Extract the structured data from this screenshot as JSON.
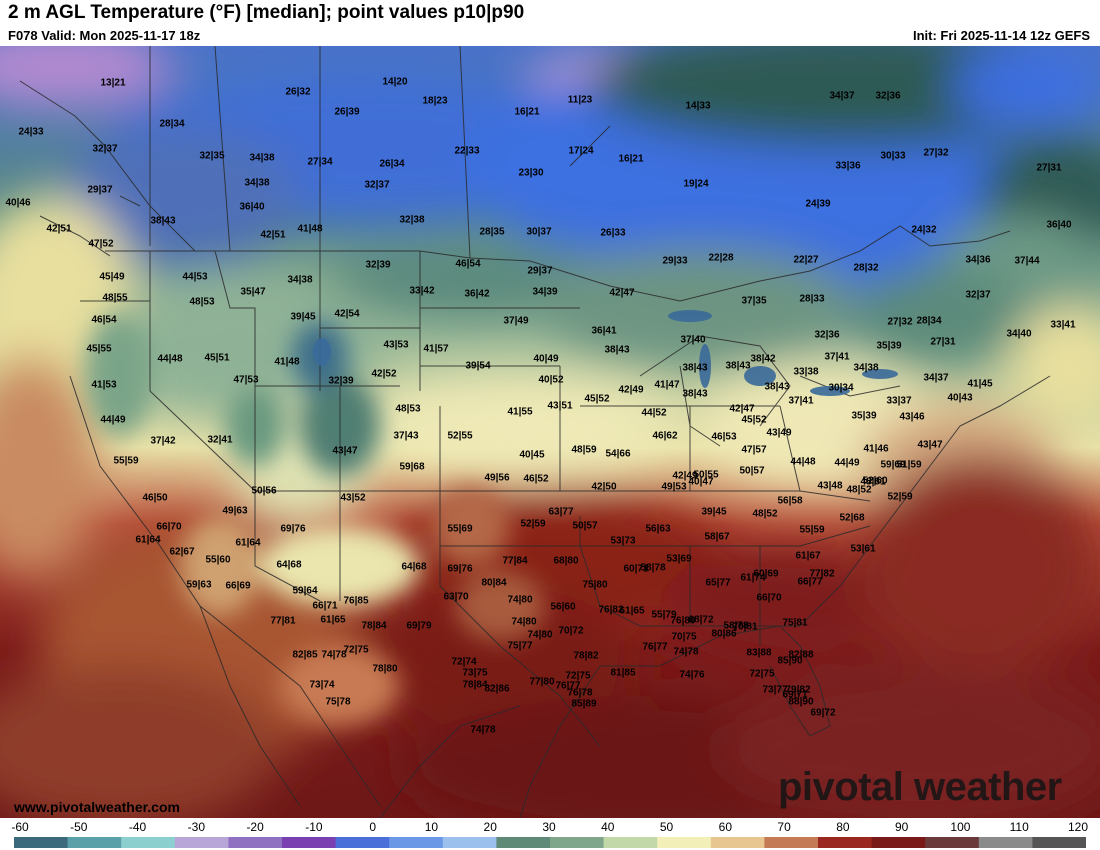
{
  "header": {
    "title": "2 m AGL Temperature (°F) [median]; point values p10|p90",
    "valid": "F078 Valid: Mon 2025-11-17 18z",
    "init": "Init: Fri 2025-11-14 12z GEFS"
  },
  "footer": {
    "site": "www.pivotalweather.com",
    "brand": "pivotal weather"
  },
  "colorbar": {
    "ticks": [
      "-60",
      "-50",
      "-40",
      "-30",
      "-20",
      "-10",
      "0",
      "10",
      "20",
      "30",
      "40",
      "50",
      "60",
      "70",
      "80",
      "90",
      "100",
      "110",
      "120"
    ],
    "colors": [
      "#3a6a7c",
      "#5aa0a8",
      "#8ccfcf",
      "#b8a6d8",
      "#9070c0",
      "#7a3fb0",
      "#4a6fd8",
      "#6a98e6",
      "#9cc0ee",
      "#5f8a78",
      "#7fa68a",
      "#c2d8a8",
      "#f2f0b8",
      "#e8c690",
      "#c47b55",
      "#9a2820",
      "#7a1a18",
      "#6a3a3a",
      "#8a8a8a",
      "#555555"
    ]
  },
  "point_values": [
    {
      "label": "13|21"
    },
    {
      "label": "26|32"
    },
    {
      "label": "14|20"
    },
    {
      "label": "18|23"
    },
    {
      "label": "16|21"
    },
    {
      "label": "11|23"
    },
    {
      "label": "14|33"
    },
    {
      "label": "34|37"
    },
    {
      "label": "32|36"
    },
    {
      "label": "24|33"
    },
    {
      "label": "28|34"
    },
    {
      "label": "26|39"
    },
    {
      "label": "32|37"
    },
    {
      "label": "32|35"
    },
    {
      "label": "34|38"
    },
    {
      "label": "27|34"
    },
    {
      "label": "26|34"
    },
    {
      "label": "22|33"
    },
    {
      "label": "23|30"
    },
    {
      "label": "17|24"
    },
    {
      "label": "16|21"
    },
    {
      "label": "30|33"
    },
    {
      "label": "27|32"
    },
    {
      "label": "33|36"
    },
    {
      "label": "27|31"
    },
    {
      "label": "29|37"
    },
    {
      "label": "34|38"
    },
    {
      "label": "32|37"
    },
    {
      "label": "19|24"
    },
    {
      "label": "40|46"
    },
    {
      "label": "36|40"
    },
    {
      "label": "38|43"
    },
    {
      "label": "32|38"
    },
    {
      "label": "24|39"
    },
    {
      "label": "42|51"
    },
    {
      "label": "41|48"
    },
    {
      "label": "42|51"
    },
    {
      "label": "28|35"
    },
    {
      "label": "30|37"
    },
    {
      "label": "26|33"
    },
    {
      "label": "24|32"
    },
    {
      "label": "36|40"
    },
    {
      "label": "47|52"
    },
    {
      "label": "29|33"
    },
    {
      "label": "22|28"
    },
    {
      "label": "22|27"
    },
    {
      "label": "28|32"
    },
    {
      "label": "34|36"
    },
    {
      "label": "37|44"
    },
    {
      "label": "32|39"
    },
    {
      "label": "46|54"
    },
    {
      "label": "45|49"
    },
    {
      "label": "44|53"
    },
    {
      "label": "34|38"
    },
    {
      "label": "29|37"
    },
    {
      "label": "42|47"
    },
    {
      "label": "35|47"
    },
    {
      "label": "33|42"
    },
    {
      "label": "36|42"
    },
    {
      "label": "34|39"
    },
    {
      "label": "32|37"
    },
    {
      "label": "48|55"
    },
    {
      "label": "48|53"
    },
    {
      "label": "37|35"
    },
    {
      "label": "28|33"
    },
    {
      "label": "39|45"
    },
    {
      "label": "42|54"
    },
    {
      "label": "37|49"
    },
    {
      "label": "46|54"
    },
    {
      "label": "27|32"
    },
    {
      "label": "28|34"
    },
    {
      "label": "33|41"
    },
    {
      "label": "36|41"
    },
    {
      "label": "34|40"
    },
    {
      "label": "37|40"
    },
    {
      "label": "32|36"
    },
    {
      "label": "27|31"
    },
    {
      "label": "43|53"
    },
    {
      "label": "41|57"
    },
    {
      "label": "38|43"
    },
    {
      "label": "35|39"
    },
    {
      "label": "45|55"
    },
    {
      "label": "44|48"
    },
    {
      "label": "45|51"
    },
    {
      "label": "41|48"
    },
    {
      "label": "40|49"
    },
    {
      "label": "38|42"
    },
    {
      "label": "37|41"
    },
    {
      "label": "38|43"
    },
    {
      "label": "39|54"
    },
    {
      "label": "38|43"
    },
    {
      "label": "33|38"
    },
    {
      "label": "34|38"
    },
    {
      "label": "47|53"
    },
    {
      "label": "32|39"
    },
    {
      "label": "42|52"
    },
    {
      "label": "41|53"
    },
    {
      "label": "40|52"
    },
    {
      "label": "42|49"
    },
    {
      "label": "38|43"
    },
    {
      "label": "34|37"
    },
    {
      "label": "41|45"
    },
    {
      "label": "41|47"
    },
    {
      "label": "38|43"
    },
    {
      "label": "30|34"
    },
    {
      "label": "40|43"
    },
    {
      "label": "45|52"
    },
    {
      "label": "37|41"
    },
    {
      "label": "33|37"
    },
    {
      "label": "43|51"
    },
    {
      "label": "42|47"
    },
    {
      "label": "48|53"
    },
    {
      "label": "41|55"
    },
    {
      "label": "44|52"
    },
    {
      "label": "35|39"
    },
    {
      "label": "43|46"
    },
    {
      "label": "45|52"
    },
    {
      "label": "44|49"
    },
    {
      "label": "37|42"
    },
    {
      "label": "32|41"
    },
    {
      "label": "37|43"
    },
    {
      "label": "52|55"
    },
    {
      "label": "46|62"
    },
    {
      "label": "46|53"
    },
    {
      "label": "43|49"
    },
    {
      "label": "41|46"
    },
    {
      "label": "43|47"
    },
    {
      "label": "43|47"
    },
    {
      "label": "40|45"
    },
    {
      "label": "48|59"
    },
    {
      "label": "54|66"
    },
    {
      "label": "47|57"
    },
    {
      "label": "44|49"
    },
    {
      "label": "51|59"
    },
    {
      "label": "55|59"
    },
    {
      "label": "49|56"
    },
    {
      "label": "46|52"
    },
    {
      "label": "42|49"
    },
    {
      "label": "40|47"
    },
    {
      "label": "44|48"
    },
    {
      "label": "59|69"
    },
    {
      "label": "59|68"
    },
    {
      "label": "50|55"
    },
    {
      "label": "50|57"
    },
    {
      "label": "48|52"
    },
    {
      "label": "48|61"
    },
    {
      "label": "50|56"
    },
    {
      "label": "42|50"
    },
    {
      "label": "49|53"
    },
    {
      "label": "43|48"
    },
    {
      "label": "52|60"
    },
    {
      "label": "43|52"
    },
    {
      "label": "46|50"
    },
    {
      "label": "56|58"
    },
    {
      "label": "52|59"
    },
    {
      "label": "49|63"
    },
    {
      "label": "39|45"
    },
    {
      "label": "48|52"
    },
    {
      "label": "66|70"
    },
    {
      "label": "69|76"
    },
    {
      "label": "55|69"
    },
    {
      "label": "52|59"
    },
    {
      "label": "50|57"
    },
    {
      "label": "52|68"
    },
    {
      "label": "56|63"
    },
    {
      "label": "55|59"
    },
    {
      "label": "61|64"
    },
    {
      "label": "62|67"
    },
    {
      "label": "53|73"
    },
    {
      "label": "58|67"
    },
    {
      "label": "53|61"
    },
    {
      "label": "63|77"
    },
    {
      "label": "55|60"
    },
    {
      "label": "61|64"
    },
    {
      "label": "53|69"
    },
    {
      "label": "61|67"
    },
    {
      "label": "64|68"
    },
    {
      "label": "64|68"
    },
    {
      "label": "69|76"
    },
    {
      "label": "77|84"
    },
    {
      "label": "68|80"
    },
    {
      "label": "60|71"
    },
    {
      "label": "59|63"
    },
    {
      "label": "66|69"
    },
    {
      "label": "58|78"
    },
    {
      "label": "61|74"
    },
    {
      "label": "60|69"
    },
    {
      "label": "77|82"
    },
    {
      "label": "59|64"
    },
    {
      "label": "80|84"
    },
    {
      "label": "75|80"
    },
    {
      "label": "55|79"
    },
    {
      "label": "65|77"
    },
    {
      "label": "66|77"
    },
    {
      "label": "63|70"
    },
    {
      "label": "61|65"
    },
    {
      "label": "74|80"
    },
    {
      "label": "56|60"
    },
    {
      "label": "76|82"
    },
    {
      "label": "76|80"
    },
    {
      "label": "58|78"
    },
    {
      "label": "66|70"
    },
    {
      "label": "76|85"
    },
    {
      "label": "66|71"
    },
    {
      "label": "61|65"
    },
    {
      "label": "68|72"
    },
    {
      "label": "77|81"
    },
    {
      "label": "74|80"
    },
    {
      "label": "70|81"
    },
    {
      "label": "69|79"
    },
    {
      "label": "78|84"
    },
    {
      "label": "74|80"
    },
    {
      "label": "70|75"
    },
    {
      "label": "80|86"
    },
    {
      "label": "75|81"
    },
    {
      "label": "70|72"
    },
    {
      "label": "75|77"
    },
    {
      "label": "72|75"
    },
    {
      "label": "76|77"
    },
    {
      "label": "74|78"
    },
    {
      "label": "82|88"
    },
    {
      "label": "78|82"
    },
    {
      "label": "83|88"
    },
    {
      "label": "74|78"
    },
    {
      "label": "72|74"
    },
    {
      "label": "82|85"
    },
    {
      "label": "72|75"
    },
    {
      "label": "73|75"
    },
    {
      "label": "81|85"
    },
    {
      "label": "85|90"
    },
    {
      "label": "72|75"
    },
    {
      "label": "78|80"
    },
    {
      "label": "74|76"
    },
    {
      "label": "88|90"
    },
    {
      "label": "85|89"
    },
    {
      "label": "73|77"
    },
    {
      "label": "74|78"
    },
    {
      "label": "77|80"
    },
    {
      "label": "69|72"
    },
    {
      "label": "75|78"
    },
    {
      "label": "76|77"
    },
    {
      "label": "79|82"
    },
    {
      "label": "76|78"
    },
    {
      "label": "69|71"
    },
    {
      "label": "82|86"
    },
    {
      "label": "78|84"
    },
    {
      "label": "73|74"
    }
  ]
}
